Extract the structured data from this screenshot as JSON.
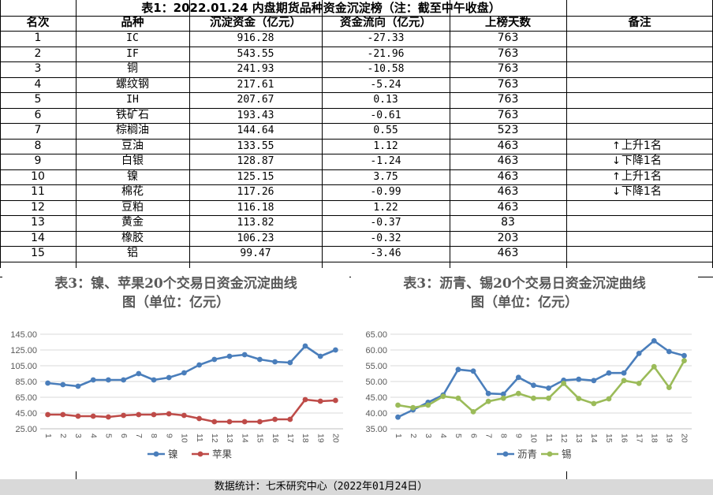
{
  "table": {
    "title": "表1：2022.01.24 内盘期货品种资金沉淀榜（注：截至中午收盘）",
    "headers": [
      "名次",
      "品种",
      "沉淀资金（亿元）",
      "资金流向（亿元）",
      "上榜天数",
      "备注"
    ],
    "rows": [
      {
        "rank": "1",
        "name": "IC",
        "fund": "916.28",
        "flow": "-27.33",
        "days": "763",
        "arrow": "",
        "note": ""
      },
      {
        "rank": "2",
        "name": "IF",
        "fund": "543.55",
        "flow": "-21.96",
        "days": "763",
        "arrow": "",
        "note": ""
      },
      {
        "rank": "3",
        "name": "铜",
        "fund": "241.93",
        "flow": "-10.58",
        "days": "763",
        "arrow": "",
        "note": ""
      },
      {
        "rank": "4",
        "name": "螺纹钢",
        "fund": "217.61",
        "flow": "-5.24",
        "days": "763",
        "arrow": "",
        "note": ""
      },
      {
        "rank": "5",
        "name": "IH",
        "fund": "207.67",
        "flow": "0.13",
        "days": "763",
        "arrow": "",
        "note": ""
      },
      {
        "rank": "6",
        "name": "铁矿石",
        "fund": "193.43",
        "flow": "-0.61",
        "days": "763",
        "arrow": "",
        "note": ""
      },
      {
        "rank": "7",
        "name": "棕榈油",
        "fund": "144.64",
        "flow": "0.55",
        "days": "523",
        "arrow": "",
        "note": ""
      },
      {
        "rank": "8",
        "name": "豆油",
        "fund": "133.55",
        "flow": "1.12",
        "days": "463",
        "arrow": "↑",
        "note": "上升1名"
      },
      {
        "rank": "9",
        "name": "白银",
        "fund": "128.87",
        "flow": "-1.24",
        "days": "463",
        "arrow": "↓",
        "note": "下降1名"
      },
      {
        "rank": "10",
        "name": "镍",
        "fund": "125.15",
        "flow": "3.75",
        "days": "463",
        "arrow": "↑",
        "note": "上升1名"
      },
      {
        "rank": "11",
        "name": "棉花",
        "fund": "117.26",
        "flow": "-0.99",
        "days": "463",
        "arrow": "↓",
        "note": "下降1名"
      },
      {
        "rank": "12",
        "name": "豆粕",
        "fund": "116.18",
        "flow": "1.22",
        "days": "463",
        "arrow": "",
        "note": ""
      },
      {
        "rank": "13",
        "name": "黄金",
        "fund": "113.82",
        "flow": "-0.37",
        "days": "83",
        "arrow": "",
        "note": ""
      },
      {
        "rank": "14",
        "name": "橡胶",
        "fund": "106.23",
        "flow": "-0.32",
        "days": "203",
        "arrow": "",
        "note": ""
      },
      {
        "rank": "15",
        "name": "铝",
        "fund": "99.47",
        "flow": "-3.46",
        "days": "463",
        "arrow": "",
        "note": ""
      }
    ]
  },
  "footer": "数据统计：七禾研究中心（2022年01月24日）",
  "chart_data": [
    {
      "type": "line",
      "title": "表3：镍、苹果20个交易日资金沉淀曲线图（单位：亿元）",
      "title_lines": [
        "表3：镍、苹果20个交易日资金沉淀曲线",
        "图（单位：亿元）"
      ],
      "x": [
        "1",
        "2",
        "3",
        "4",
        "5",
        "6",
        "7",
        "8",
        "9",
        "10",
        "11",
        "12",
        "13",
        "14",
        "15",
        "16",
        "17",
        "18",
        "19",
        "20"
      ],
      "ylim": [
        25,
        145
      ],
      "yticks": [
        "25.00",
        "45.00",
        "65.00",
        "85.00",
        "105.00",
        "125.00",
        "145.00"
      ],
      "grid": true,
      "legend_position": "bottom",
      "series": [
        {
          "name": "镍",
          "color": "#4a7ebb",
          "values": [
            83,
            81,
            79,
            87,
            87,
            87,
            95,
            87,
            90,
            96,
            106,
            113,
            117,
            119,
            113,
            110,
            109,
            130,
            117,
            125
          ]
        },
        {
          "name": "苹果",
          "color": "#be4b48",
          "values": [
            43,
            43,
            41,
            41,
            40,
            42,
            43,
            43,
            44,
            42,
            38,
            34,
            34,
            34,
            34,
            37,
            37,
            62,
            60,
            61
          ]
        }
      ]
    },
    {
      "type": "line",
      "title": "表3：沥青、锡20个交易日资金沉淀曲线图（单位：亿元）",
      "title_lines": [
        "表3：沥青、锡20个交易日资金沉淀曲线",
        "图（单位：亿元）"
      ],
      "x": [
        "1",
        "2",
        "3",
        "4",
        "5",
        "6",
        "7",
        "8",
        "9",
        "10",
        "11",
        "12",
        "13",
        "14",
        "15",
        "16",
        "17",
        "18",
        "19",
        "20"
      ],
      "ylim": [
        35,
        65
      ],
      "yticks": [
        "35.00",
        "40.00",
        "45.00",
        "50.00",
        "55.00",
        "60.00",
        "65.00"
      ],
      "grid": true,
      "legend_position": "bottom",
      "series": [
        {
          "name": "沥青",
          "color": "#4a7ebb",
          "values": [
            38.7,
            41.0,
            43.4,
            45.7,
            53.8,
            53.3,
            46.2,
            46.0,
            51.3,
            48.8,
            47.9,
            50.4,
            50.7,
            50.3,
            52.7,
            52.7,
            58.9,
            62.9,
            59.5,
            58.2
          ]
        },
        {
          "name": "锡",
          "color": "#9bbb59",
          "values": [
            42.5,
            41.7,
            42.5,
            45.3,
            44.7,
            40.4,
            43.7,
            44.7,
            46.2,
            44.7,
            44.7,
            49.4,
            44.6,
            43.0,
            44.5,
            50.3,
            49.4,
            54.7,
            48.1,
            56.6
          ]
        }
      ]
    }
  ]
}
